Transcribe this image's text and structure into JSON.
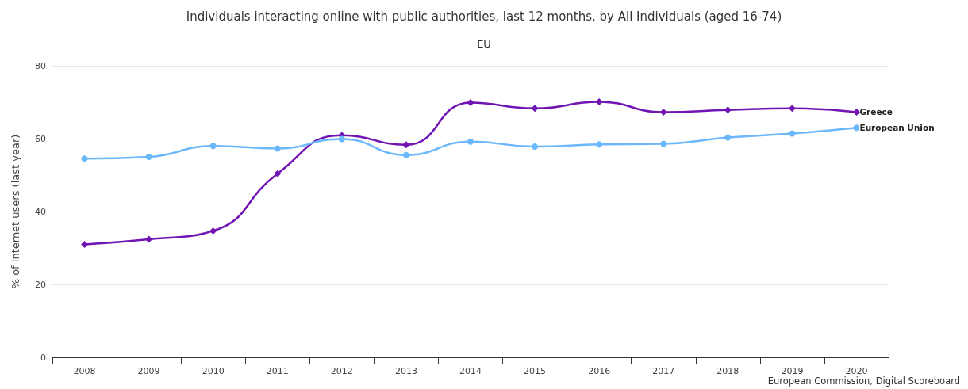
{
  "chart_data": {
    "type": "line",
    "title": "Individuals interacting online with public authorities, last 12 months, by All Individuals (aged 16-74)",
    "subtitle": "EU",
    "ylabel": "% of internet users (last year)",
    "categories": [
      "2008",
      "2009",
      "2010",
      "2011",
      "2012",
      "2013",
      "2014",
      "2015",
      "2016",
      "2017",
      "2018",
      "2019",
      "2020"
    ],
    "series": [
      {
        "name": "Greece",
        "color": "#7014b4",
        "marker": "diamond",
        "values": [
          31,
          32.4,
          34.7,
          50.4,
          60.9,
          58.3,
          69.9,
          68.3,
          70.1,
          67.3,
          67.9,
          68.3,
          67.3
        ]
      },
      {
        "name": "European Union",
        "color": "#6cb8fc",
        "marker": "circle",
        "values": [
          54.5,
          55,
          58,
          57.3,
          59.9,
          55.5,
          59.2,
          57.8,
          58.4,
          58.6,
          60.3,
          61.4,
          63
        ]
      }
    ],
    "ylim": [
      0,
      80
    ],
    "yticks": [
      0,
      20,
      40,
      60,
      80
    ],
    "grid": "y",
    "legend": false,
    "annotations": [
      "European Commission, Digital Scoreboard"
    ]
  }
}
